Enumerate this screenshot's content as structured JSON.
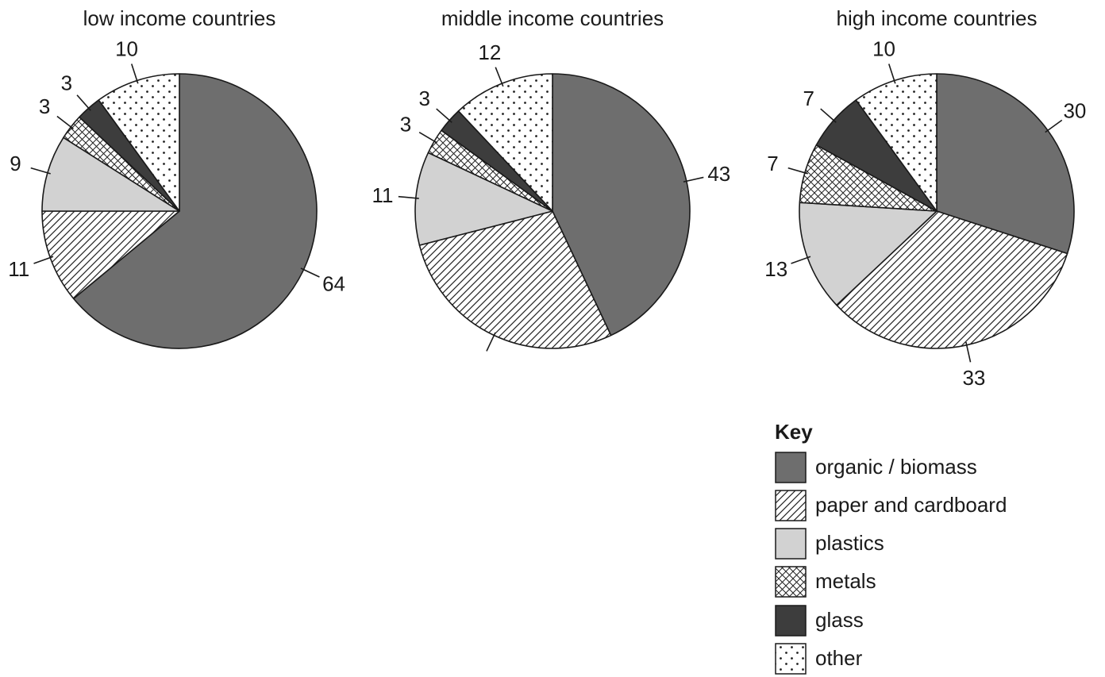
{
  "chart_data": [
    {
      "type": "pie",
      "title": "low income countries",
      "categories": [
        "organic/biomass",
        "paper and cardboard",
        "plastics",
        "metals",
        "glass",
        "other"
      ],
      "values": [
        64,
        11,
        9,
        3,
        3,
        10
      ],
      "labels": [
        "64",
        "11",
        "9",
        "3",
        "3",
        "10"
      ]
    },
    {
      "type": "pie",
      "title": "middle income countries",
      "categories": [
        "organic/biomass",
        "paper and cardboard",
        "plastics",
        "metals",
        "glass",
        "other"
      ],
      "values": [
        43,
        28,
        11,
        3,
        3,
        12
      ],
      "labels": [
        "43",
        "",
        "11",
        "3",
        "3",
        "12"
      ]
    },
    {
      "type": "pie",
      "title": "high income countries",
      "categories": [
        "organic/biomass",
        "paper and cardboard",
        "plastics",
        "metals",
        "glass",
        "other"
      ],
      "values": [
        30,
        33,
        13,
        7,
        7,
        10
      ],
      "labels": [
        "30",
        "33",
        "13",
        "7",
        "7",
        "10"
      ]
    }
  ],
  "key": {
    "heading": "Key",
    "entries": [
      {
        "label": "organic / biomass",
        "fill": "solid",
        "color": "#6e6e6e",
        "icon": "solid-grey-swatch"
      },
      {
        "label": "paper and cardboard",
        "fill": "diagonal-hatch",
        "color": "#ffffff",
        "icon": "hatched-swatch"
      },
      {
        "label": "plastics",
        "fill": "solid",
        "color": "#d2d2d2",
        "icon": "light-grey-swatch"
      },
      {
        "label": "metals",
        "fill": "cross-hatch",
        "color": "#ffffff",
        "icon": "crosshatch-swatch"
      },
      {
        "label": "glass",
        "fill": "solid",
        "color": "#3d3d3d",
        "icon": "dark-swatch"
      },
      {
        "label": "other",
        "fill": "dots",
        "color": "#ffffff",
        "icon": "dotted-swatch"
      }
    ]
  }
}
